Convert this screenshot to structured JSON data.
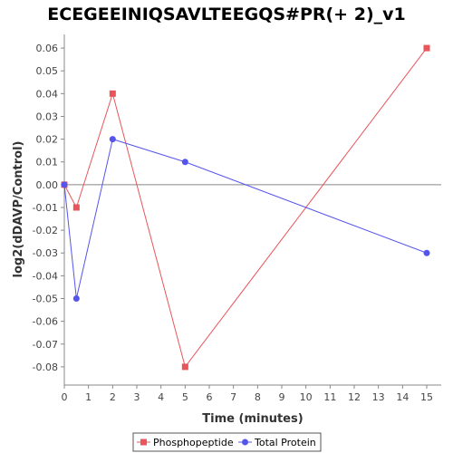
{
  "chart_data": {
    "type": "line",
    "title": "ECEGEEINIQSAVLTEEGQS#PR(+ 2)_v1",
    "xlabel": "Time (minutes)",
    "ylabel": "log2(dDAVP/Control)",
    "xlim": [
      0,
      15.6
    ],
    "ylim": [
      -0.088,
      0.066
    ],
    "x_ticks": [
      0,
      1,
      2,
      3,
      4,
      5,
      6,
      7,
      8,
      9,
      10,
      11,
      12,
      13,
      14,
      15
    ],
    "y_ticks": [
      -0.08,
      -0.07,
      -0.06,
      -0.05,
      -0.04,
      -0.03,
      -0.02,
      -0.01,
      0.0,
      0.01,
      0.02,
      0.03,
      0.04,
      0.05,
      0.06
    ],
    "y_tick_labels": [
      "-0.08",
      "-0.07",
      "-0.06",
      "-0.05",
      "-0.04",
      "-0.03",
      "-0.02",
      "-0.01",
      "0.00",
      "0.01",
      "0.02",
      "0.03",
      "0.04",
      "0.05",
      "0.06"
    ],
    "zero_line": true,
    "grid": false,
    "legend_position": "bottom",
    "series": [
      {
        "name": "Phosphopeptide",
        "color": "#e8555a",
        "marker": "square",
        "x": [
          0,
          0.5,
          2,
          5,
          15
        ],
        "y": [
          0.0,
          -0.01,
          0.04,
          -0.08,
          0.06
        ]
      },
      {
        "name": "Total Protein",
        "color": "#5555ee",
        "marker": "circle",
        "x": [
          0,
          0.5,
          2,
          5,
          15
        ],
        "y": [
          0.0,
          -0.05,
          0.02,
          0.01,
          -0.03
        ]
      }
    ]
  }
}
